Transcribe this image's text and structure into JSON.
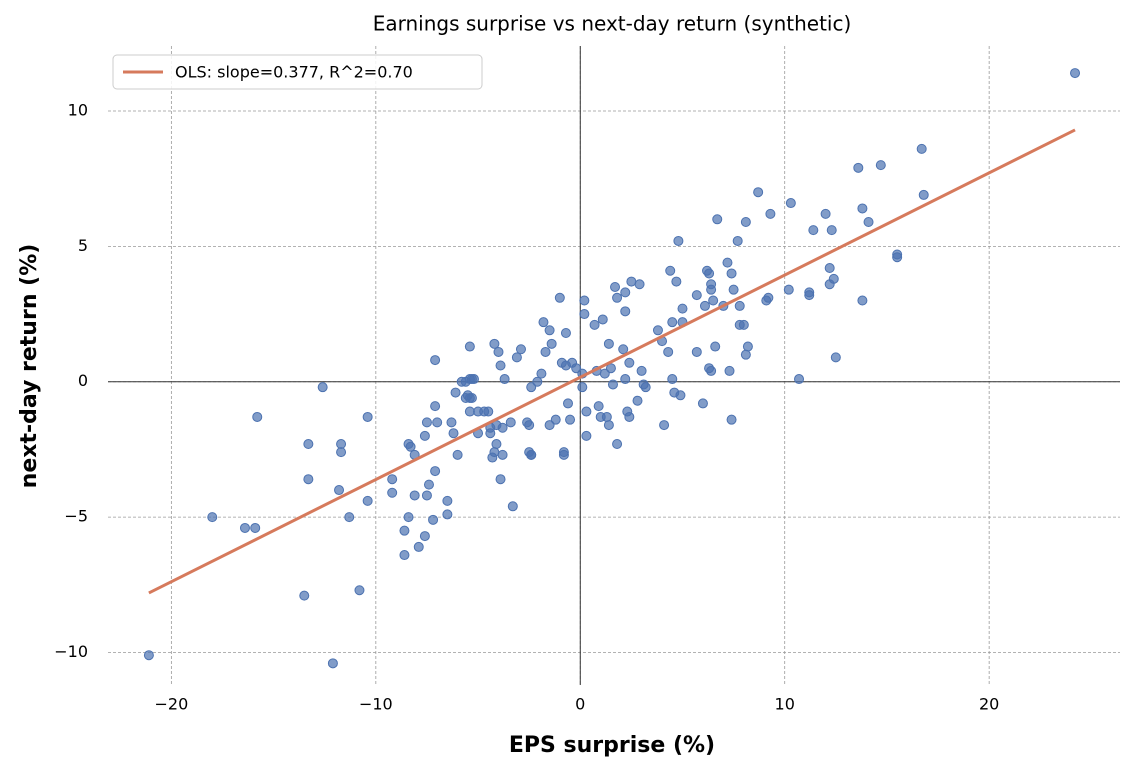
{
  "chart_data": {
    "type": "scatter",
    "title": "Earnings surprise vs next-day return (synthetic)",
    "xlabel": "EPS surprise (%)",
    "ylabel": "next-day return (%)",
    "color": "#4c72b0",
    "x": [
      -21.1,
      -18.0,
      -16.4,
      -15.9,
      -15.8,
      -13.5,
      -13.3,
      -13.3,
      -12.6,
      -12.1,
      -11.8,
      -11.7,
      -11.7,
      -11.3,
      -10.8,
      -10.4,
      -10.4,
      -9.2,
      -9.2,
      -8.6,
      -8.6,
      -8.4,
      -8.4,
      -8.3,
      -8.1,
      -8.1,
      -7.9,
      -7.6,
      -7.6,
      -7.5,
      -7.5,
      -7.4,
      -7.2,
      -7.1,
      -7.1,
      -7.1,
      -7.0,
      -6.5,
      -6.5,
      -6.3,
      -6.2,
      -6.1,
      -6.0,
      -5.8,
      -5.6,
      -5.6,
      -5.5,
      -5.4,
      -5.4,
      -5.4,
      -5.4,
      -5.3,
      -5.3,
      -5.2,
      -5.0,
      -5.0,
      -4.7,
      -4.5,
      -4.4,
      -4.4,
      -4.3,
      -4.2,
      -4.2,
      -4.1,
      -4.1,
      -4.0,
      -3.9,
      -3.9,
      -3.8,
      -3.8,
      -3.7,
      -3.4,
      -3.3,
      -3.1,
      -2.9,
      -2.6,
      -2.5,
      -2.5,
      -2.4,
      -2.4,
      -2.4,
      -2.1,
      -1.9,
      -1.8,
      -1.7,
      -1.5,
      -1.5,
      -1.4,
      -1.2,
      -1.0,
      -0.9,
      -0.8,
      -0.8,
      -0.7,
      -0.7,
      -0.6,
      -0.5,
      -0.4,
      -0.2,
      0.1,
      0.1,
      0.2,
      0.2,
      0.3,
      0.3,
      0.7,
      0.8,
      0.9,
      1.0,
      1.1,
      1.2,
      1.3,
      1.4,
      1.4,
      1.5,
      1.6,
      1.7,
      1.8,
      1.8,
      2.1,
      2.2,
      2.2,
      2.2,
      2.3,
      2.4,
      2.4,
      2.5,
      2.8,
      2.9,
      3.0,
      3.1,
      3.2,
      3.8,
      4.0,
      4.1,
      4.3,
      4.4,
      4.5,
      4.5,
      4.6,
      4.7,
      4.8,
      4.9,
      5.0,
      5.0,
      5.7,
      5.7,
      6.0,
      6.1,
      6.2,
      6.3,
      6.3,
      6.4,
      6.4,
      6.4,
      6.5,
      6.6,
      6.7,
      7.0,
      7.2,
      7.3,
      7.4,
      7.4,
      7.5,
      7.7,
      7.8,
      7.8,
      8.0,
      8.1,
      8.1,
      8.2,
      8.7,
      9.1,
      9.2,
      9.3,
      10.2,
      10.3,
      10.7,
      11.2,
      11.2,
      11.4,
      12.0,
      12.2,
      12.2,
      12.3,
      12.4,
      12.5,
      13.6,
      13.8,
      13.8,
      14.1,
      14.7,
      15.5,
      15.5,
      16.7,
      16.8,
      24.2
    ],
    "y": [
      -10.1,
      -5.0,
      -5.4,
      -5.4,
      -1.3,
      -7.9,
      -2.3,
      -3.6,
      -0.2,
      -10.4,
      -4.0,
      -2.6,
      -2.3,
      -5.0,
      -7.7,
      -4.4,
      -1.3,
      -4.1,
      -3.6,
      -6.4,
      -5.5,
      -2.3,
      -5.0,
      -2.4,
      -2.7,
      -4.2,
      -6.1,
      -2.0,
      -5.7,
      -1.5,
      -4.2,
      -3.8,
      -5.1,
      -0.9,
      0.8,
      -3.3,
      -1.5,
      -4.4,
      -4.9,
      -1.5,
      -1.9,
      -0.4,
      -2.7,
      0.0,
      0.0,
      -0.6,
      -0.5,
      0.1,
      1.3,
      -1.1,
      -0.6,
      -0.6,
      0.1,
      0.1,
      -1.1,
      -1.9,
      -1.1,
      -1.1,
      -1.9,
      -1.7,
      -2.8,
      -2.6,
      1.4,
      -1.6,
      -2.3,
      1.1,
      0.6,
      -3.6,
      -2.7,
      -1.7,
      0.1,
      -1.5,
      -4.6,
      0.9,
      1.2,
      -1.5,
      -2.6,
      -1.6,
      -2.7,
      -2.7,
      -0.2,
      0.0,
      0.3,
      2.2,
      1.1,
      -1.6,
      1.9,
      1.4,
      -1.4,
      3.1,
      0.7,
      -2.6,
      -2.7,
      1.8,
      0.6,
      -0.8,
      -1.4,
      0.7,
      0.5,
      0.3,
      -0.2,
      3.0,
      2.5,
      -1.1,
      -2.0,
      2.1,
      0.4,
      -0.9,
      -1.3,
      2.3,
      0.3,
      -1.3,
      -1.6,
      1.4,
      0.5,
      -0.1,
      3.5,
      3.1,
      -2.3,
      1.2,
      3.3,
      2.6,
      0.1,
      -1.1,
      0.7,
      -1.3,
      3.7,
      -0.7,
      3.6,
      0.4,
      -0.1,
      -0.2,
      1.9,
      1.5,
      -1.6,
      1.1,
      4.1,
      2.2,
      0.1,
      -0.4,
      3.7,
      5.2,
      -0.5,
      2.7,
      2.2,
      3.2,
      1.1,
      -0.8,
      2.8,
      4.1,
      4.0,
      0.5,
      3.6,
      3.4,
      0.4,
      3.0,
      1.3,
      6.0,
      2.8,
      4.4,
      0.4,
      -1.4,
      4.0,
      3.4,
      5.2,
      2.1,
      2.8,
      2.1,
      5.9,
      1.0,
      1.3,
      7.0,
      3.0,
      3.1,
      6.2,
      3.4,
      6.6,
      0.1,
      3.3,
      3.2,
      5.6,
      6.2,
      3.6,
      4.2,
      5.6,
      3.8,
      0.9,
      7.9,
      3.0,
      6.4,
      5.9,
      8.0,
      4.6,
      4.7,
      8.6,
      6.9,
      11.4
    ],
    "line": {
      "name": "OLS: slope=0.377, R^2=0.70",
      "color": "#d67a5c",
      "x": [
        -21.1,
        24.2
      ],
      "y": [
        -7.8,
        9.3
      ]
    },
    "xlim": [
      -23.1,
      26.4
    ],
    "ylim": [
      -11.2,
      12.4
    ],
    "xticks": [
      {
        "value": -20,
        "label": "−20"
      },
      {
        "value": -10,
        "label": "−10"
      },
      0,
      10,
      20
    ],
    "yticks": [
      {
        "value": -10,
        "label": "−10"
      },
      {
        "value": -5,
        "label": "−5"
      },
      0,
      5,
      10
    ],
    "grid": true,
    "legend": "upper left"
  }
}
